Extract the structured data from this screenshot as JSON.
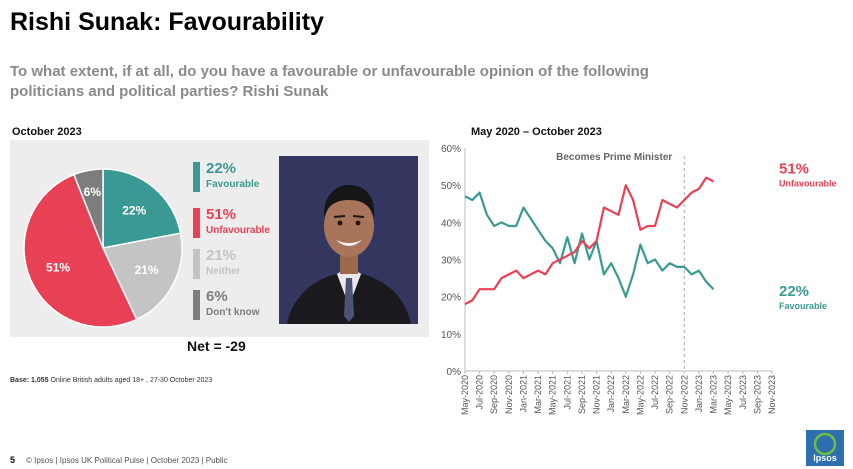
{
  "title": "Rishi Sunak: Favourability",
  "question": "To what extent, if at all, do you have a favourable or unfavourable opinion of the following politicians and political parties? Rishi Sunak",
  "left_panel": {
    "date": "October 2023",
    "net": "Net = -29",
    "base_prefix": "Base:",
    "base_n": "1,055",
    "base_rest": "Online British adults aged 18+ , 27-30 October 2023",
    "portrait_alt": "Rishi Sunak portrait"
  },
  "right_panel": {
    "date": "May 2020 – October 2023",
    "annotation": "Becomes Prime Minister",
    "end_labels": {
      "unfav_pct": "51%",
      "unfav_label": "Unfavourable",
      "fav_pct": "22%",
      "fav_label": "Favourable"
    }
  },
  "colors": {
    "favourable": "#3a9a93",
    "unfavourable": "#e84055",
    "neither": "#c4c4c4",
    "dont_know": "#7d7d7d",
    "panel": "#ededed",
    "logo": "#2e6fb0"
  },
  "footer": {
    "page": "5",
    "text": "© Ipsos  |  Ipsos UK Political Pulse | October 2023 | Public",
    "logo_text": "Ipsos"
  },
  "chart_data": [
    {
      "type": "pie",
      "title": "October 2023",
      "slices": [
        {
          "label": "Favourable",
          "value": 22,
          "display": "22%",
          "color_key": "favourable"
        },
        {
          "label": "Neither",
          "value": 21,
          "display": "21%",
          "color_key": "neither"
        },
        {
          "label": "Unfavourable",
          "value": 51,
          "display": "51%",
          "color_key": "unfavourable"
        },
        {
          "label": "Don't know",
          "value": 6,
          "display": "6%",
          "color_key": "dont_know"
        }
      ],
      "legend": [
        {
          "pct": "22%",
          "label": "Favourable",
          "color_key": "favourable"
        },
        {
          "pct": "51%",
          "label": "Unfavourable",
          "color_key": "unfavourable"
        },
        {
          "pct": "21%",
          "label": "Neither",
          "color_key": "neither"
        },
        {
          "pct": "6%",
          "label": "Don't know",
          "color_key": "dont_know"
        }
      ]
    },
    {
      "type": "line",
      "title": "May 2020 – October 2023",
      "ylim": [
        0,
        60
      ],
      "yticks": [
        0,
        10,
        20,
        30,
        40,
        50,
        60
      ],
      "ytick_labels": [
        "0%",
        "10%",
        "20%",
        "30%",
        "40%",
        "50%",
        "60%"
      ],
      "x_tick_labels": [
        "May-2020",
        "Jul-2020",
        "Sep-2020",
        "Nov-2020",
        "Jan-2021",
        "Mar-2021",
        "May-2021",
        "Jul-2021",
        "Sep-2021",
        "Nov-2021",
        "Jan-2022",
        "Mar-2022",
        "May-2022",
        "Jul-2022",
        "Sep-2022",
        "Nov-2022",
        "Jan-2023",
        "Mar-2023",
        "May-2023",
        "Jul-2023",
        "Sep-2023",
        "Nov-2023"
      ],
      "x_range": [
        0,
        42
      ],
      "marker_x": 30,
      "series": [
        {
          "name": "Favourable",
          "color_key": "favourable",
          "points": [
            [
              0,
              47
            ],
            [
              1,
              46
            ],
            [
              2,
              48
            ],
            [
              3,
              42
            ],
            [
              4,
              39
            ],
            [
              5,
              40
            ],
            [
              6,
              39
            ],
            [
              7,
              39
            ],
            [
              8,
              44
            ],
            [
              9,
              41
            ],
            [
              10,
              38
            ],
            [
              11,
              35
            ],
            [
              12,
              33
            ],
            [
              13,
              29
            ],
            [
              14,
              36
            ],
            [
              15,
              29
            ],
            [
              16,
              37
            ],
            [
              17,
              30
            ],
            [
              18,
              35
            ],
            [
              19,
              26
            ],
            [
              20,
              29
            ],
            [
              21,
              25
            ],
            [
              22,
              20
            ],
            [
              23,
              26
            ],
            [
              24,
              34
            ],
            [
              25,
              29
            ],
            [
              26,
              30
            ],
            [
              27,
              27
            ],
            [
              28,
              29
            ],
            [
              29,
              28
            ],
            [
              30,
              28
            ],
            [
              31,
              26
            ],
            [
              32,
              27
            ],
            [
              33,
              24
            ],
            [
              34,
              22
            ]
          ]
        },
        {
          "name": "Unfavourable",
          "color_key": "unfavourable",
          "points": [
            [
              0,
              18
            ],
            [
              1,
              19
            ],
            [
              2,
              22
            ],
            [
              3,
              22
            ],
            [
              4,
              22
            ],
            [
              5,
              25
            ],
            [
              6,
              26
            ],
            [
              7,
              27
            ],
            [
              8,
              25
            ],
            [
              9,
              26
            ],
            [
              10,
              27
            ],
            [
              11,
              26
            ],
            [
              12,
              29
            ],
            [
              13,
              30
            ],
            [
              14,
              31
            ],
            [
              15,
              32
            ],
            [
              16,
              35
            ],
            [
              17,
              33
            ],
            [
              18,
              35
            ],
            [
              19,
              44
            ],
            [
              20,
              43
            ],
            [
              21,
              42
            ],
            [
              22,
              50
            ],
            [
              23,
              46
            ],
            [
              24,
              38
            ],
            [
              25,
              39
            ],
            [
              26,
              39
            ],
            [
              27,
              46
            ],
            [
              28,
              45
            ],
            [
              29,
              44
            ],
            [
              30,
              46
            ],
            [
              31,
              48
            ],
            [
              32,
              49
            ],
            [
              33,
              52
            ],
            [
              34,
              51
            ]
          ]
        }
      ]
    }
  ]
}
